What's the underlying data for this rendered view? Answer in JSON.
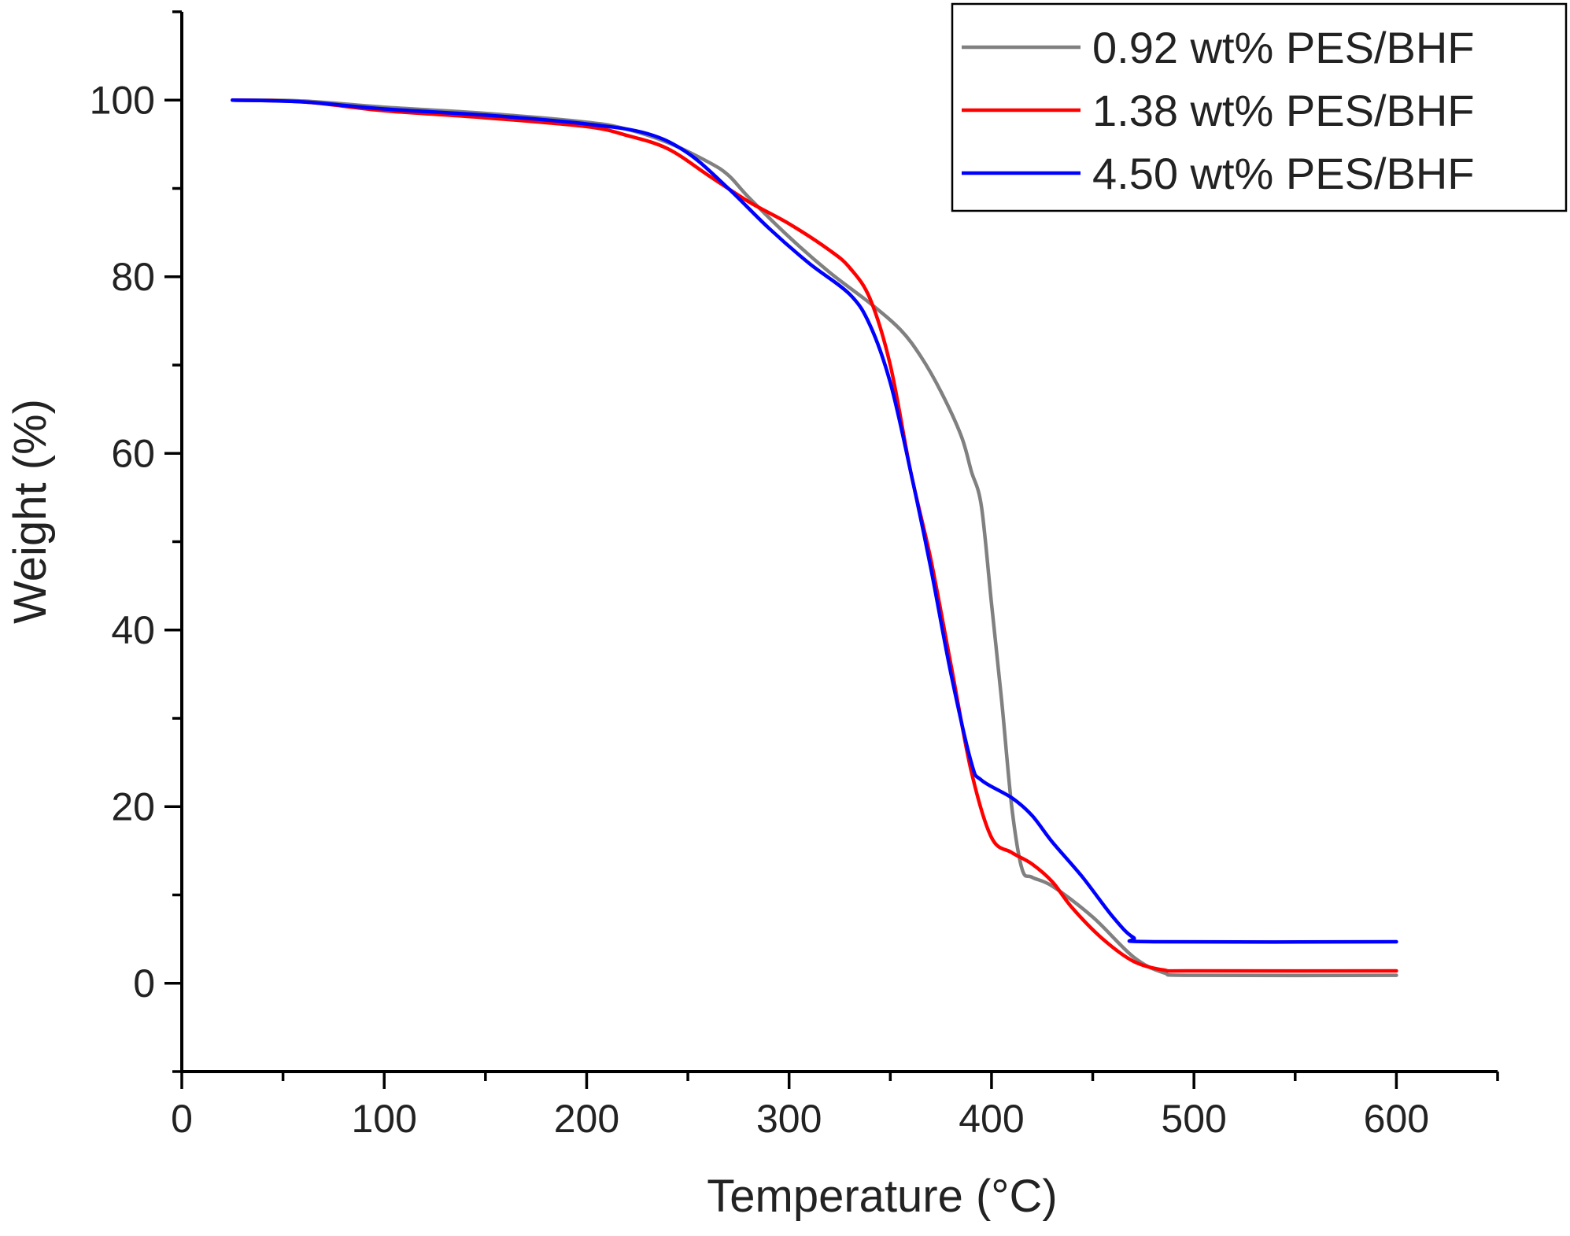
{
  "chart_data": {
    "type": "line",
    "title": "",
    "xlabel": "Temperature (°C)",
    "ylabel": "Weight (%)",
    "xlim": [
      0,
      650
    ],
    "ylim": [
      -10,
      110
    ],
    "x_ticks": [
      "0",
      "100",
      "200",
      "300",
      "400",
      "500",
      "600"
    ],
    "y_ticks": [
      "0",
      "20",
      "40",
      "60",
      "80",
      "100"
    ],
    "grid": false,
    "legend_position": "top-right",
    "series": [
      {
        "name": "0.92 wt% PES/BHF",
        "color": "#808080",
        "points": [
          [
            25,
            100
          ],
          [
            60,
            99.9
          ],
          [
            100,
            99.2
          ],
          [
            150,
            98.5
          ],
          [
            200,
            97.5
          ],
          [
            220,
            96.7
          ],
          [
            240,
            95.2
          ],
          [
            260,
            93
          ],
          [
            270,
            91.5
          ],
          [
            280,
            89
          ],
          [
            300,
            84.5
          ],
          [
            320,
            80.5
          ],
          [
            340,
            77
          ],
          [
            355,
            74
          ],
          [
            365,
            71
          ],
          [
            375,
            67
          ],
          [
            385,
            62
          ],
          [
            390,
            58
          ],
          [
            395,
            54
          ],
          [
            400,
            43
          ],
          [
            405,
            32
          ],
          [
            410,
            20
          ],
          [
            415,
            13
          ],
          [
            420,
            12
          ],
          [
            430,
            11
          ],
          [
            450,
            7.5
          ],
          [
            470,
            3
          ],
          [
            485,
            1.2
          ],
          [
            500,
            0.9
          ],
          [
            600,
            0.9
          ]
        ]
      },
      {
        "name": "1.38 wt% PES/BHF",
        "color": "#ff0000",
        "points": [
          [
            25,
            100
          ],
          [
            60,
            99.8
          ],
          [
            100,
            98.8
          ],
          [
            150,
            98
          ],
          [
            200,
            97
          ],
          [
            220,
            96
          ],
          [
            240,
            94.5
          ],
          [
            260,
            91.5
          ],
          [
            280,
            88.5
          ],
          [
            300,
            86
          ],
          [
            320,
            83
          ],
          [
            330,
            81
          ],
          [
            340,
            77.5
          ],
          [
            350,
            70
          ],
          [
            360,
            58
          ],
          [
            370,
            48
          ],
          [
            380,
            36
          ],
          [
            390,
            24
          ],
          [
            400,
            16.5
          ],
          [
            410,
            14.8
          ],
          [
            420,
            13.5
          ],
          [
            430,
            11.5
          ],
          [
            440,
            8.5
          ],
          [
            455,
            5
          ],
          [
            470,
            2.5
          ],
          [
            485,
            1.5
          ],
          [
            500,
            1.4
          ],
          [
            600,
            1.4
          ]
        ]
      },
      {
        "name": "4.50 wt% PES/BHF",
        "color": "#0000ff",
        "points": [
          [
            25,
            100
          ],
          [
            60,
            99.8
          ],
          [
            100,
            99
          ],
          [
            150,
            98.3
          ],
          [
            200,
            97.3
          ],
          [
            230,
            96.2
          ],
          [
            250,
            94
          ],
          [
            270,
            90
          ],
          [
            290,
            85.5
          ],
          [
            310,
            81.5
          ],
          [
            330,
            78
          ],
          [
            340,
            74.5
          ],
          [
            350,
            68
          ],
          [
            360,
            58
          ],
          [
            370,
            47
          ],
          [
            380,
            35
          ],
          [
            390,
            25
          ],
          [
            395,
            23
          ],
          [
            410,
            21
          ],
          [
            420,
            19
          ],
          [
            430,
            16
          ],
          [
            445,
            12
          ],
          [
            460,
            7.5
          ],
          [
            470,
            5.2
          ],
          [
            480,
            4.7
          ],
          [
            600,
            4.7
          ]
        ]
      }
    ]
  }
}
